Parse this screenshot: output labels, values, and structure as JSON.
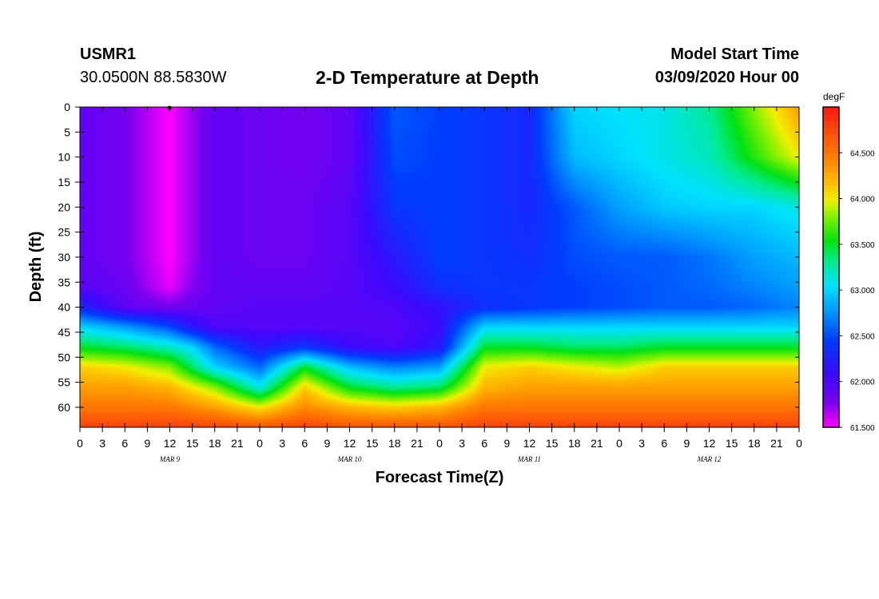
{
  "header": {
    "station": "USMR1",
    "coordinates": "30.0500N 88.5830W",
    "title": "2-D Temperature at Depth",
    "model_start_label": "Model Start Time",
    "model_start_value": "03/09/2020 Hour 00"
  },
  "chart_data": {
    "type": "heatmap",
    "title": "2-D Temperature at Depth",
    "xlabel": "Forecast Time(Z)",
    "ylabel": "Depth (ft)",
    "x_ticks": [
      "0",
      "3",
      "6",
      "9",
      "12",
      "15",
      "18",
      "21",
      "0",
      "3",
      "6",
      "9",
      "12",
      "15",
      "18",
      "21",
      "0",
      "3",
      "6",
      "9",
      "12",
      "15",
      "18",
      "21",
      "0",
      "3",
      "6",
      "9",
      "12",
      "15",
      "18",
      "21",
      "0"
    ],
    "x_range_hours": [
      0,
      96
    ],
    "date_labels": [
      {
        "label": "MAR 9",
        "hour": 12
      },
      {
        "label": "MAR 10",
        "hour": 36
      },
      {
        "label": "MAR 11",
        "hour": 60
      },
      {
        "label": "MAR 12",
        "hour": 84
      }
    ],
    "y_ticks": [
      "0",
      "5",
      "10",
      "15",
      "20",
      "25",
      "30",
      "35",
      "40",
      "45",
      "50",
      "55",
      "60"
    ],
    "y_range_ft": [
      0,
      64
    ],
    "y_inverted": true,
    "colorbar": {
      "unit": "degF",
      "range": [
        61.5,
        65.0
      ],
      "tick_labels": [
        "61.500",
        "62.000",
        "62.500",
        "63.000",
        "63.500",
        "64.000",
        "64.500"
      ]
    },
    "time_hours": [
      0,
      6,
      12,
      15,
      18,
      24,
      30,
      36,
      42,
      48,
      54,
      60,
      66,
      72,
      78,
      84,
      90,
      96
    ],
    "depths_ft": [
      0,
      10,
      20,
      30,
      36,
      40,
      44,
      48,
      52,
      56,
      60,
      64
    ],
    "values_degF": [
      [
        61.9,
        61.8,
        61.5,
        61.7,
        61.9,
        61.85,
        61.8,
        61.9,
        62.55,
        62.45,
        62.4,
        62.3,
        63.0,
        63.05,
        63.1,
        63.3,
        63.8,
        64.3
      ],
      [
        61.9,
        61.8,
        61.5,
        61.7,
        61.9,
        61.85,
        61.8,
        61.9,
        62.5,
        62.45,
        62.4,
        62.3,
        62.9,
        63.0,
        63.1,
        63.2,
        63.6,
        64.0
      ],
      [
        61.9,
        61.8,
        61.5,
        61.7,
        61.9,
        61.85,
        61.85,
        61.95,
        62.4,
        62.45,
        62.4,
        62.3,
        62.55,
        62.8,
        62.95,
        63.0,
        63.0,
        63.1
      ],
      [
        61.9,
        61.8,
        61.5,
        61.7,
        61.9,
        61.85,
        61.85,
        61.95,
        62.2,
        62.45,
        62.4,
        62.35,
        62.5,
        62.55,
        62.55,
        62.65,
        62.8,
        62.9
      ],
      [
        61.95,
        61.85,
        61.55,
        61.75,
        61.9,
        61.9,
        61.9,
        61.95,
        62.1,
        62.35,
        62.4,
        62.4,
        62.45,
        62.5,
        62.55,
        62.6,
        62.7,
        62.8
      ],
      [
        62.3,
        61.9,
        61.8,
        61.85,
        61.9,
        61.95,
        61.95,
        61.95,
        62.0,
        62.15,
        62.35,
        62.4,
        62.45,
        62.5,
        62.55,
        62.55,
        62.6,
        62.7
      ],
      [
        63.0,
        62.8,
        62.5,
        62.2,
        62.0,
        61.95,
        61.95,
        61.95,
        61.95,
        62.1,
        63.0,
        63.0,
        63.0,
        63.0,
        63.0,
        63.0,
        63.0,
        63.0
      ],
      [
        63.5,
        63.4,
        63.2,
        63.0,
        62.6,
        62.2,
        62.4,
        62.1,
        62.0,
        62.2,
        63.5,
        63.5,
        63.4,
        63.4,
        63.5,
        63.5,
        63.5,
        63.5
      ],
      [
        64.1,
        64.0,
        63.8,
        63.4,
        63.0,
        62.6,
        63.5,
        62.9,
        62.7,
        62.8,
        64.0,
        64.1,
        64.0,
        63.9,
        64.1,
        64.1,
        64.1,
        64.1
      ],
      [
        64.3,
        64.3,
        64.2,
        64.0,
        63.8,
        63.1,
        64.1,
        63.5,
        63.3,
        63.4,
        64.2,
        64.3,
        64.3,
        64.3,
        64.3,
        64.3,
        64.3,
        64.3
      ],
      [
        64.5,
        64.5,
        64.5,
        64.4,
        64.3,
        64.0,
        64.4,
        64.2,
        64.1,
        64.2,
        64.5,
        64.5,
        64.5,
        64.5,
        64.5,
        64.5,
        64.5,
        64.5
      ],
      [
        64.8,
        64.8,
        64.8,
        64.8,
        64.8,
        64.7,
        64.8,
        64.7,
        64.7,
        64.7,
        64.8,
        64.8,
        64.8,
        64.8,
        64.8,
        64.8,
        64.8,
        64.8
      ]
    ]
  }
}
